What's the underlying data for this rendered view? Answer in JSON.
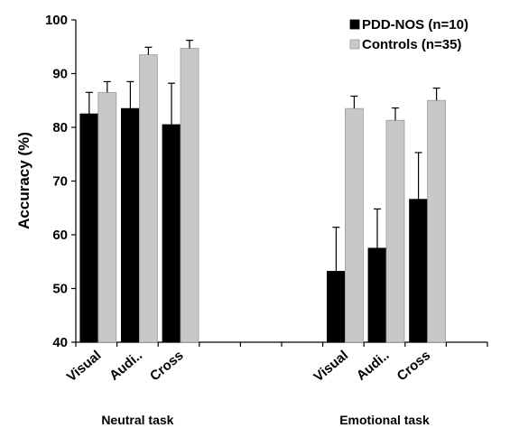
{
  "chart_data": {
    "type": "bar",
    "ylabel": "Accuracy (%)",
    "ylim": [
      40,
      100
    ],
    "yticks": [
      40,
      50,
      60,
      70,
      80,
      90,
      100
    ],
    "grid": false,
    "legend_position": "top-right",
    "groups": [
      {
        "label": "Neutral task",
        "categories": [
          "Visual",
          "Audi..",
          "Cross"
        ],
        "series": [
          {
            "name": "PDD-NOS (n=10)",
            "values": [
              82.5,
              83.5,
              80.5
            ],
            "errors": [
              4.0,
              5.0,
              7.7
            ]
          },
          {
            "name": "Controls (n=35)",
            "values": [
              86.5,
              93.5,
              94.7
            ],
            "errors": [
              2.0,
              1.4,
              1.5
            ]
          }
        ]
      },
      {
        "label": "Emotional task",
        "categories": [
          "Visual",
          "Audi..",
          "Cross"
        ],
        "series": [
          {
            "name": "PDD-NOS (n=10)",
            "values": [
              53.2,
              57.5,
              66.6
            ],
            "errors": [
              8.2,
              7.3,
              8.7
            ]
          },
          {
            "name": "Controls (n=35)",
            "values": [
              83.5,
              81.3,
              85.0
            ],
            "errors": [
              2.3,
              2.3,
              2.3
            ]
          }
        ]
      }
    ],
    "legend": [
      {
        "name": "PDD-NOS (n=10)",
        "color": "#000000"
      },
      {
        "name": "Controls (n=35)",
        "color": "#c8c8c8"
      }
    ]
  }
}
